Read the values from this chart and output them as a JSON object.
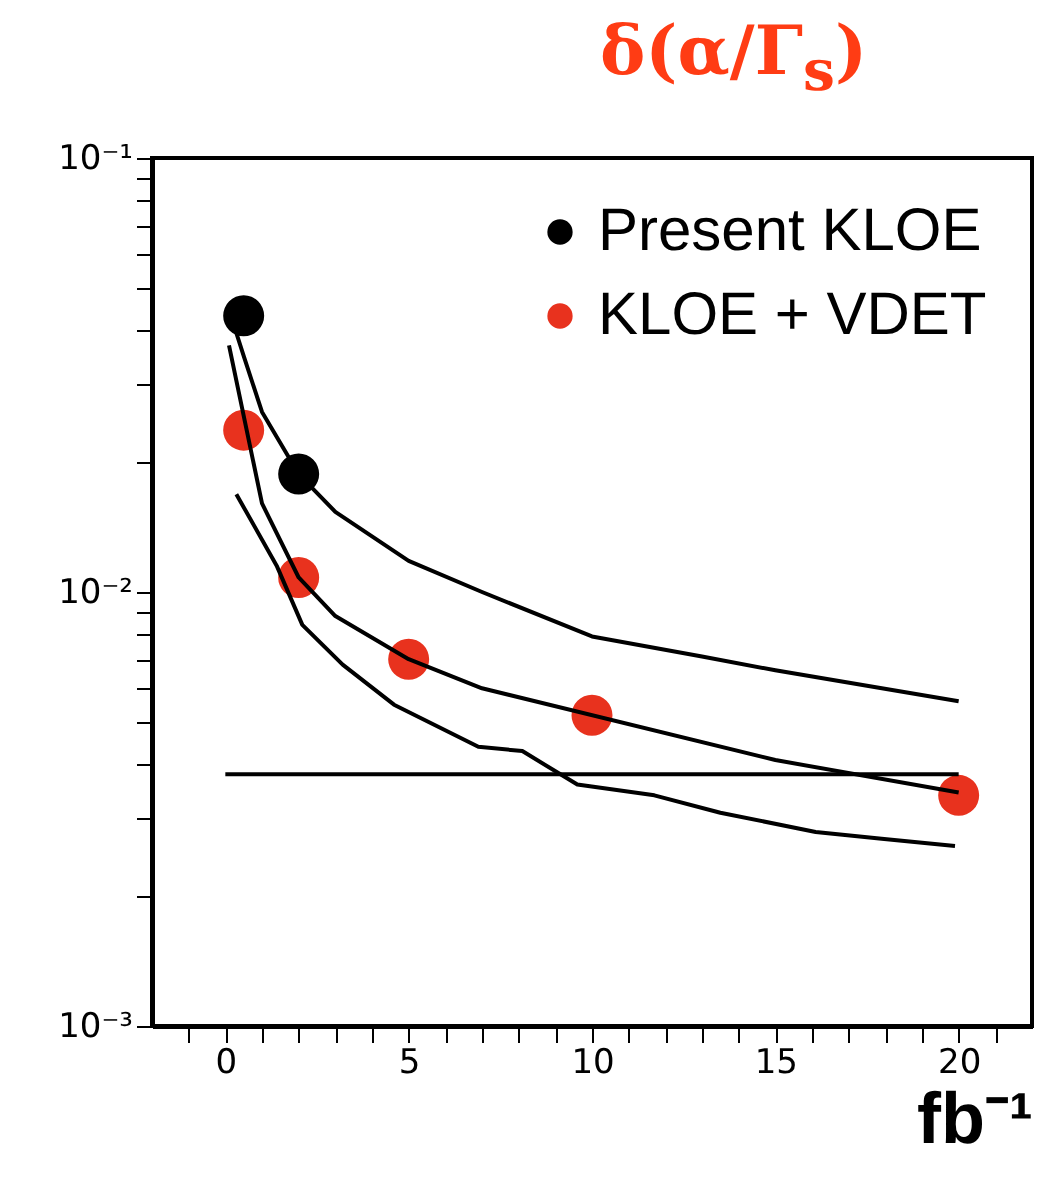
{
  "chart_data": {
    "type": "line",
    "title": "δ(α/Γ$_{s}$)",
    "xlabel": "fb⁻¹",
    "log": "y",
    "grid": false,
    "legend": "top right",
    "marker": "none",
    "line_style": "solid",
    "xlim": [
      -2,
      22
    ],
    "ylim": [
      0.001,
      0.1
    ],
    "xticks": [
      {
        "value": -1,
        "label": null
      },
      0,
      {
        "value": 1,
        "label": null
      },
      {
        "value": 2,
        "label": null
      },
      {
        "value": 3,
        "label": null
      },
      {
        "value": 4,
        "label": null
      },
      5,
      {
        "value": 6,
        "label": null
      },
      {
        "value": 7,
        "label": null
      },
      {
        "value": 8,
        "label": null
      },
      {
        "value": 9,
        "label": null
      },
      10,
      {
        "value": 11,
        "label": null
      },
      {
        "value": 12,
        "label": null
      },
      {
        "value": 13,
        "label": null
      },
      {
        "value": 14,
        "label": null
      },
      15,
      {
        "value": 16,
        "label": null
      },
      {
        "value": 17,
        "label": null
      },
      {
        "value": 18,
        "label": null
      },
      {
        "value": 19,
        "label": null
      },
      20,
      {
        "value": 21,
        "label": null
      }
    ],
    "yticks": [
      {
        "value": 0.001,
        "label": "10⁻³"
      },
      {
        "value": 0.002,
        "label": null
      },
      {
        "value": 0.003,
        "label": null
      },
      {
        "value": 0.004,
        "label": null
      },
      {
        "value": 0.005,
        "label": null
      },
      {
        "value": 0.006,
        "label": null
      },
      {
        "value": 0.007,
        "label": null
      },
      {
        "value": 0.008,
        "label": null
      },
      {
        "value": 0.009,
        "label": null
      },
      {
        "value": 0.01,
        "label": "10⁻²"
      },
      {
        "value": 0.02,
        "label": null
      },
      {
        "value": 0.03,
        "label": null
      },
      {
        "value": 0.04,
        "label": null
      },
      {
        "value": 0.05,
        "label": null
      },
      {
        "value": 0.06,
        "label": null
      },
      {
        "value": 0.07,
        "label": null
      },
      {
        "value": 0.08,
        "label": null
      },
      {
        "value": 0.09,
        "label": null
      },
      {
        "value": 0.1,
        "label": "10⁻¹"
      }
    ],
    "series": [
      {
        "color": "#000000",
        "x": [
          0.2,
          0.5,
          1,
          2,
          3,
          5,
          7,
          10,
          13,
          15,
          20
        ],
        "values": [
          0.042,
          0.035,
          0.026,
          0.0187,
          0.0153,
          0.0118,
          0.01,
          0.0079,
          0.0071,
          0.0066,
          0.0056
        ]
      },
      {
        "color": "#000000",
        "x": [
          0.1,
          1,
          2,
          3,
          5,
          7,
          15,
          20
        ],
        "values": [
          0.037,
          0.016,
          0.0108,
          0.0088,
          0.007,
          0.006,
          0.0041,
          0.00345
        ]
      },
      {
        "color": "#000000",
        "x": [
          0.3,
          1.4,
          2.1,
          3.2,
          4.6,
          6.9,
          8.1,
          9.6,
          11.7,
          13.5,
          16.1,
          17.9,
          19.9
        ],
        "values": [
          0.0168,
          0.0115,
          0.0084,
          0.0068,
          0.0055,
          0.0044,
          0.0043,
          0.0036,
          0.0034,
          0.0031,
          0.0028,
          0.0027,
          0.0026
        ]
      },
      {
        "color": "#000000",
        "x": [
          0,
          20
        ],
        "values": [
          0.0038,
          0.0038
        ]
      },
      {
        "type": "scatter",
        "name": "Present KLOE",
        "color": "#000000",
        "marker": "circle",
        "x": [
          0.5,
          2
        ],
        "values": [
          0.0433,
          0.0187
        ]
      },
      {
        "type": "scatter",
        "name": "KLOE + VDET",
        "color": "#e8321e",
        "marker": "circle",
        "x": [
          0.5,
          2,
          5,
          10,
          20
        ],
        "values": [
          0.0236,
          0.0108,
          0.007,
          0.0052,
          0.0034
        ]
      }
    ]
  }
}
